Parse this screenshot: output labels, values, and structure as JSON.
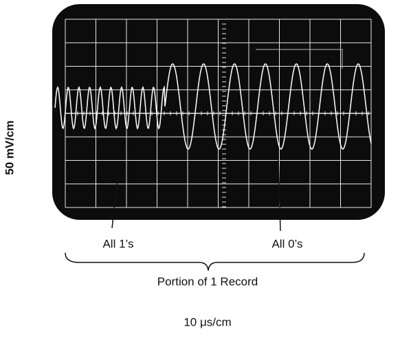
{
  "figure": {
    "y_scale_label": "50 mV/cm",
    "x_scale_label": "10 μs/cm",
    "annotations": [
      "All 1’s",
      "All 0’s"
    ],
    "caption": "Portion of 1 Record"
  }
}
